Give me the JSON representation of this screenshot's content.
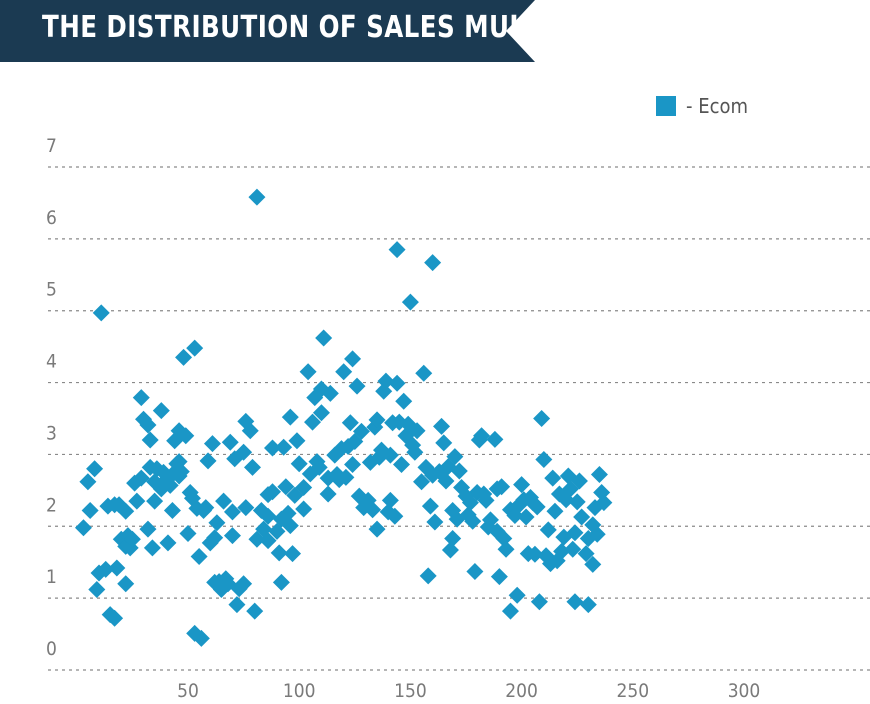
{
  "title": "THE DISTRIBUTION OF SALES MULTIPLES",
  "colors": {
    "banner": "#1b3a52",
    "marker": "#1a96c6",
    "grid": "#8a8a8a",
    "tick_text": "#7a7a7a"
  },
  "chart_data": {
    "type": "scatter",
    "title": "THE DISTRIBUTION OF SALES MULTIPLES",
    "xlabel": "",
    "ylabel": "",
    "xlim": [
      0,
      350
    ],
    "ylim": [
      0,
      7
    ],
    "x_ticks": [
      50,
      100,
      150,
      200,
      250,
      300
    ],
    "y_ticks": [
      0,
      1,
      2,
      3,
      4,
      5,
      6,
      7
    ],
    "grid": "horizontal-dashed",
    "legend_position": "top-right",
    "series": [
      {
        "name": "Ecom",
        "marker": "diamond",
        "color": "#1a96c6",
        "points": [
          [
            3,
            1.98
          ],
          [
            5,
            2.62
          ],
          [
            6,
            2.22
          ],
          [
            8,
            2.8
          ],
          [
            9,
            1.12
          ],
          [
            10,
            1.35
          ],
          [
            11,
            4.97
          ],
          [
            13,
            1.4
          ],
          [
            14,
            2.28
          ],
          [
            15,
            0.77
          ],
          [
            17,
            0.72
          ],
          [
            17,
            2.3
          ],
          [
            18,
            1.42
          ],
          [
            19,
            2.3
          ],
          [
            20,
            1.82
          ],
          [
            22,
            1.72
          ],
          [
            22,
            1.2
          ],
          [
            22,
            2.21
          ],
          [
            23,
            1.87
          ],
          [
            24,
            1.7
          ],
          [
            25,
            1.82
          ],
          [
            26,
            2.6
          ],
          [
            27,
            2.35
          ],
          [
            29,
            3.79
          ],
          [
            29,
            2.67
          ],
          [
            30,
            3.49
          ],
          [
            32,
            1.96
          ],
          [
            32,
            3.41
          ],
          [
            33,
            2.82
          ],
          [
            33,
            3.2
          ],
          [
            34,
            1.7
          ],
          [
            35,
            2.62
          ],
          [
            35,
            2.35
          ],
          [
            36,
            2.8
          ],
          [
            38,
            3.61
          ],
          [
            38,
            2.52
          ],
          [
            39,
            2.75
          ],
          [
            40,
            2.64
          ],
          [
            41,
            1.77
          ],
          [
            42,
            2.57
          ],
          [
            43,
            2.72
          ],
          [
            43,
            2.22
          ],
          [
            44,
            3.19
          ],
          [
            45,
            2.87
          ],
          [
            46,
            2.7
          ],
          [
            46,
            2.9
          ],
          [
            46,
            3.33
          ],
          [
            47,
            2.76
          ],
          [
            48,
            4.35
          ],
          [
            49,
            3.26
          ],
          [
            50,
            1.9
          ],
          [
            51,
            2.47
          ],
          [
            52,
            2.39
          ],
          [
            53,
            4.48
          ],
          [
            53,
            0.51
          ],
          [
            54,
            2.25
          ],
          [
            55,
            1.58
          ],
          [
            56,
            0.44
          ],
          [
            57,
            2.22
          ],
          [
            58,
            2.26
          ],
          [
            59,
            2.91
          ],
          [
            60,
            1.77
          ],
          [
            61,
            3.15
          ],
          [
            62,
            1.84
          ],
          [
            62,
            1.22
          ],
          [
            63,
            2.05
          ],
          [
            64,
            1.23
          ],
          [
            65,
            1.12
          ],
          [
            66,
            2.35
          ],
          [
            67,
            1.27
          ],
          [
            68,
            1.2
          ],
          [
            69,
            3.17
          ],
          [
            70,
            2.2
          ],
          [
            70,
            1.87
          ],
          [
            71,
            2.94
          ],
          [
            72,
            0.91
          ],
          [
            73,
            1.13
          ],
          [
            75,
            1.2
          ],
          [
            75,
            3.03
          ],
          [
            76,
            3.46
          ],
          [
            76,
            2.26
          ],
          [
            78,
            3.33
          ],
          [
            79,
            2.82
          ],
          [
            80,
            0.82
          ],
          [
            81,
            1.82
          ],
          [
            81,
            6.58
          ],
          [
            83,
            2.22
          ],
          [
            84,
            1.96
          ],
          [
            86,
            2.14
          ],
          [
            86,
            1.8
          ],
          [
            86,
            2.44
          ],
          [
            88,
            3.09
          ],
          [
            88,
            2.48
          ],
          [
            90,
            1.93
          ],
          [
            91,
            1.63
          ],
          [
            92,
            2.1
          ],
          [
            92,
            1.22
          ],
          [
            93,
            3.1
          ],
          [
            94,
            2.55
          ],
          [
            95,
            2.18
          ],
          [
            96,
            3.52
          ],
          [
            96,
            2.01
          ],
          [
            97,
            1.62
          ],
          [
            98,
            2.43
          ],
          [
            99,
            3.19
          ],
          [
            100,
            2.87
          ],
          [
            102,
            2.54
          ],
          [
            102,
            2.24
          ],
          [
            104,
            4.15
          ],
          [
            105,
            2.73
          ],
          [
            106,
            3.45
          ],
          [
            107,
            3.79
          ],
          [
            108,
            2.9
          ],
          [
            109,
            2.82
          ],
          [
            110,
            3.91
          ],
          [
            110,
            3.58
          ],
          [
            111,
            4.62
          ],
          [
            113,
            2.67
          ],
          [
            113,
            2.45
          ],
          [
            114,
            3.85
          ],
          [
            116,
            2.99
          ],
          [
            117,
            2.72
          ],
          [
            118,
            2.65
          ],
          [
            119,
            3.08
          ],
          [
            120,
            4.15
          ],
          [
            121,
            2.68
          ],
          [
            122,
            3.11
          ],
          [
            123,
            3.44
          ],
          [
            124,
            2.86
          ],
          [
            124,
            4.33
          ],
          [
            125,
            3.18
          ],
          [
            126,
            3.95
          ],
          [
            127,
            2.42
          ],
          [
            128,
            3.32
          ],
          [
            129,
            2.26
          ],
          [
            131,
            2.36
          ],
          [
            132,
            2.89
          ],
          [
            133,
            2.23
          ],
          [
            134,
            3.38
          ],
          [
            135,
            3.48
          ],
          [
            135,
            1.96
          ],
          [
            136,
            2.96
          ],
          [
            137,
            3.06
          ],
          [
            138,
            3.88
          ],
          [
            139,
            4.02
          ],
          [
            140,
            2.2
          ],
          [
            141,
            2.99
          ],
          [
            141,
            2.36
          ],
          [
            142,
            3.44
          ],
          [
            143,
            2.14
          ],
          [
            144,
            3.99
          ],
          [
            144,
            5.85
          ],
          [
            145,
            3.45
          ],
          [
            146,
            2.86
          ],
          [
            147,
            3.74
          ],
          [
            148,
            3.26
          ],
          [
            149,
            3.42
          ],
          [
            150,
            5.12
          ],
          [
            151,
            3.13
          ],
          [
            152,
            3.03
          ],
          [
            153,
            3.33
          ],
          [
            155,
            2.62
          ],
          [
            156,
            4.13
          ],
          [
            157,
            2.82
          ],
          [
            158,
            1.31
          ],
          [
            159,
            2.28
          ],
          [
            160,
            5.67
          ],
          [
            160,
            2.71
          ],
          [
            161,
            2.06
          ],
          [
            163,
            2.76
          ],
          [
            164,
            3.39
          ],
          [
            165,
            3.16
          ],
          [
            166,
            2.63
          ],
          [
            167,
            2.83
          ],
          [
            168,
            1.67
          ],
          [
            169,
            2.22
          ],
          [
            169,
            1.83
          ],
          [
            170,
            2.97
          ],
          [
            171,
            2.1
          ],
          [
            172,
            2.77
          ],
          [
            173,
            2.54
          ],
          [
            175,
            2.42
          ],
          [
            176,
            2.16
          ],
          [
            177,
            2.33
          ],
          [
            178,
            2.07
          ],
          [
            179,
            1.37
          ],
          [
            180,
            2.47
          ],
          [
            181,
            3.2
          ],
          [
            182,
            3.26
          ],
          [
            183,
            2.45
          ],
          [
            184,
            2.36
          ],
          [
            185,
            1.99
          ],
          [
            186,
            2.09
          ],
          [
            188,
            3.21
          ],
          [
            189,
            2.52
          ],
          [
            189,
            1.93
          ],
          [
            190,
            1.3
          ],
          [
            191,
            2.55
          ],
          [
            192,
            1.83
          ],
          [
            193,
            1.68
          ],
          [
            195,
            2.23
          ],
          [
            195,
            0.82
          ],
          [
            197,
            2.15
          ],
          [
            198,
            1.04
          ],
          [
            199,
            2.3
          ],
          [
            200,
            2.58
          ],
          [
            201,
            2.37
          ],
          [
            202,
            2.13
          ],
          [
            203,
            1.62
          ],
          [
            204,
            2.4
          ],
          [
            205,
            2.33
          ],
          [
            206,
            1.61
          ],
          [
            207,
            2.27
          ],
          [
            208,
            0.95
          ],
          [
            209,
            3.5
          ],
          [
            210,
            2.93
          ],
          [
            211,
            1.59
          ],
          [
            212,
            1.95
          ],
          [
            213,
            1.48
          ],
          [
            214,
            2.67
          ],
          [
            215,
            2.21
          ],
          [
            216,
            1.52
          ],
          [
            217,
            2.45
          ],
          [
            218,
            1.65
          ],
          [
            219,
            1.85
          ],
          [
            220,
            2.37
          ],
          [
            221,
            2.7
          ],
          [
            222,
            2.52
          ],
          [
            223,
            1.68
          ],
          [
            224,
            1.91
          ],
          [
            224,
            0.95
          ],
          [
            225,
            2.34
          ],
          [
            226,
            2.63
          ],
          [
            227,
            2.13
          ],
          [
            229,
            1.62
          ],
          [
            230,
            0.91
          ],
          [
            230,
            1.83
          ],
          [
            232,
            2.02
          ],
          [
            232,
            1.47
          ],
          [
            233,
            2.26
          ],
          [
            234,
            1.89
          ],
          [
            235,
            2.72
          ],
          [
            236,
            2.47
          ],
          [
            237,
            2.33
          ]
        ]
      }
    ]
  }
}
